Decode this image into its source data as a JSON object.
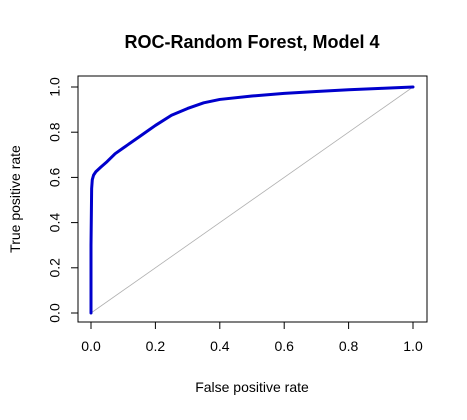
{
  "chart_data": {
    "type": "line",
    "title": "ROC-Random Forest, Model 4",
    "xlabel": "False positive rate",
    "ylabel": "True positive rate",
    "xlim": [
      0,
      1
    ],
    "ylim": [
      0,
      1
    ],
    "xticks": [
      "0.0",
      "0.2",
      "0.4",
      "0.6",
      "0.8",
      "1.0"
    ],
    "yticks": [
      "0.0",
      "0.2",
      "0.4",
      "0.6",
      "0.8",
      "1.0"
    ],
    "grid": false,
    "legend": "none",
    "series": [
      {
        "color": "#0000cc",
        "points": [
          [
            0.0,
            0.0
          ],
          [
            0.0,
            0.3
          ],
          [
            0.002,
            0.55
          ],
          [
            0.004,
            0.59
          ],
          [
            0.008,
            0.61
          ],
          [
            0.015,
            0.625
          ],
          [
            0.03,
            0.645
          ],
          [
            0.05,
            0.67
          ],
          [
            0.075,
            0.705
          ],
          [
            0.1,
            0.73
          ],
          [
            0.15,
            0.78
          ],
          [
            0.2,
            0.83
          ],
          [
            0.25,
            0.875
          ],
          [
            0.3,
            0.905
          ],
          [
            0.35,
            0.93
          ],
          [
            0.4,
            0.945
          ],
          [
            0.5,
            0.96
          ],
          [
            0.6,
            0.972
          ],
          [
            0.7,
            0.98
          ],
          [
            0.8,
            0.988
          ],
          [
            0.9,
            0.994
          ],
          [
            1.0,
            1.0
          ]
        ]
      }
    ],
    "reference_line": {
      "color": "#b0b0b0",
      "points": [
        [
          0,
          0
        ],
        [
          1,
          1
        ]
      ]
    }
  }
}
